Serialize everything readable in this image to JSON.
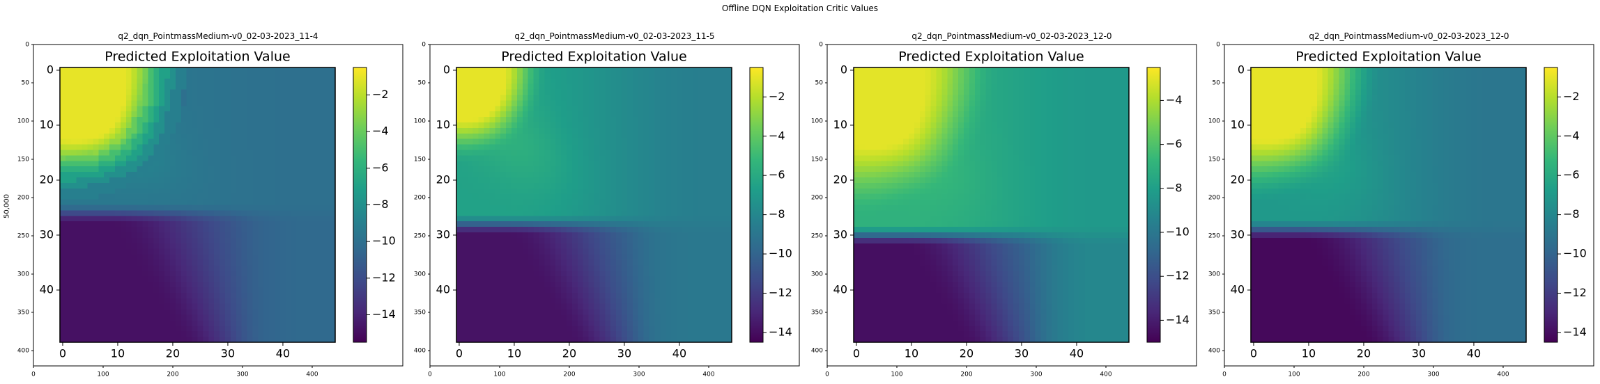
{
  "figure": {
    "suptitle": "Offline DQN Exploitation Critic Values",
    "outer_ylabel": "50,000"
  },
  "outer_axes": {
    "x_ticks": [
      0,
      100,
      200,
      300,
      400
    ],
    "y_ticks": [
      0,
      50,
      100,
      150,
      200,
      250,
      300,
      350,
      400
    ]
  },
  "panels": [
    {
      "title": "q2_dqn_PointmassMedium-v0_02-03-2023_11-4",
      "inner_title": "Predicted Exploitation Value",
      "cbar_ticks": [
        -2,
        -4,
        -6,
        -8,
        -10,
        -12,
        -14
      ]
    },
    {
      "title": "q2_dqn_PointmassMedium-v0_02-03-2023_11-5",
      "inner_title": "Predicted Exploitation Value",
      "cbar_ticks": [
        -2,
        -4,
        -6,
        -8,
        -10,
        -12,
        -14
      ]
    },
    {
      "title": "q2_dqn_PointmassMedium-v0_02-03-2023_12-0",
      "inner_title": "Predicted Exploitation Value",
      "cbar_ticks": [
        -4,
        -6,
        -8,
        -10,
        -12,
        -14
      ]
    },
    {
      "title": "q2_dqn_PointmassMedium-v0_02-03-2023_12-0",
      "inner_title": "Predicted Exploitation Value",
      "cbar_ticks": [
        -2,
        -4,
        -6,
        -8,
        -10,
        -12,
        -14
      ]
    }
  ],
  "chart_data": [
    {
      "type": "heatmap",
      "title": "Predicted Exploitation Value",
      "x_ticks": [
        0,
        10,
        20,
        30,
        40
      ],
      "y_ticks": [
        0,
        10,
        20,
        30,
        40
      ],
      "xlim": [
        0,
        50
      ],
      "ylim": [
        50,
        0
      ],
      "value_range": [
        -15.5,
        -0.5
      ],
      "colormap": "viridis",
      "anchors": {
        "yellow_corner": -1.0,
        "mid_field": -9.5,
        "right_side": -10.0,
        "bottom_right": -11.0,
        "bottom_left": -14.8
      },
      "boundary_row": 26,
      "corner_radius": 20,
      "pixelated": true
    },
    {
      "type": "heatmap",
      "title": "Predicted Exploitation Value",
      "x_ticks": [
        0,
        10,
        20,
        30,
        40
      ],
      "y_ticks": [
        0,
        10,
        20,
        30,
        40
      ],
      "xlim": [
        0,
        50
      ],
      "ylim": [
        50,
        0
      ],
      "value_range": [
        -14.5,
        -0.5
      ],
      "colormap": "viridis",
      "anchors": {
        "yellow_corner": -1.0,
        "mid_field": -6.5,
        "right_side": -8.5,
        "bottom_right": -9.5,
        "bottom_left": -13.8
      },
      "boundary_row": 28,
      "corner_radius": 14,
      "pixelated": false
    },
    {
      "type": "heatmap",
      "title": "Predicted Exploitation Value",
      "x_ticks": [
        0,
        10,
        20,
        30,
        40
      ],
      "y_ticks": [
        0,
        10,
        20,
        30,
        40
      ],
      "xlim": [
        0,
        50
      ],
      "ylim": [
        50,
        0
      ],
      "value_range": [
        -15.0,
        -2.5
      ],
      "colormap": "viridis",
      "anchors": {
        "yellow_corner": -3.0,
        "mid_field": -7.0,
        "right_side": -8.3,
        "bottom_right": -10.5,
        "bottom_left": -14.5
      },
      "boundary_row": 30,
      "corner_radius": 22,
      "pixelated": false
    },
    {
      "type": "heatmap",
      "title": "Predicted Exploitation Value",
      "x_ticks": [
        0,
        10,
        20,
        30,
        40
      ],
      "y_ticks": [
        0,
        10,
        20,
        30,
        40
      ],
      "xlim": [
        0,
        50
      ],
      "ylim": [
        50,
        0
      ],
      "value_range": [
        -14.5,
        -0.5
      ],
      "colormap": "viridis",
      "anchors": {
        "yellow_corner": -1.0,
        "mid_field": -7.0,
        "right_side": -9.0,
        "bottom_right": -10.0,
        "bottom_left": -14.2
      },
      "boundary_row": 29,
      "corner_radius": 20,
      "pixelated": false
    }
  ]
}
